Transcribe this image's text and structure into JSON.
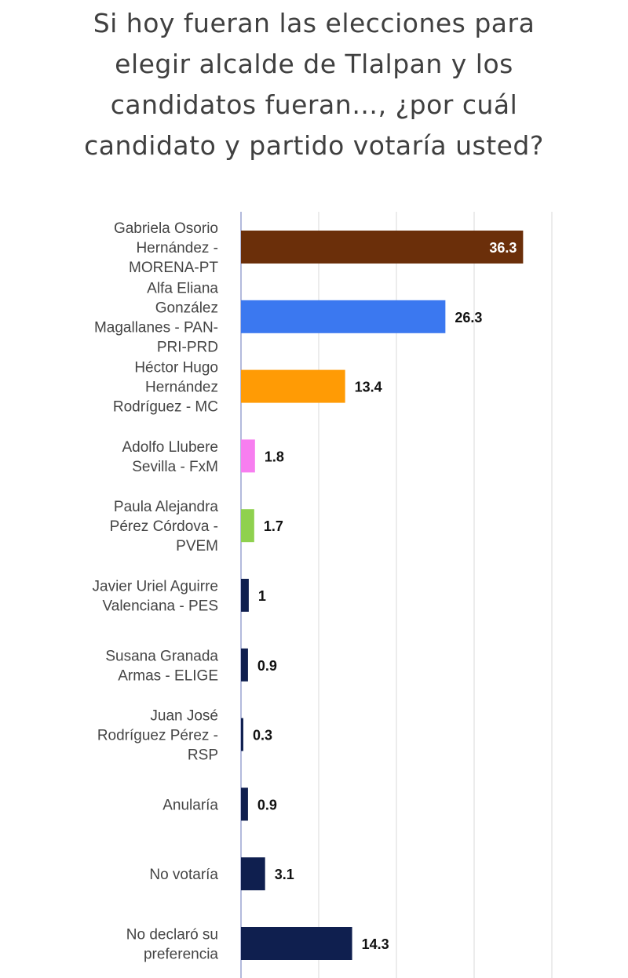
{
  "title_lines": [
    "Si hoy fueran las elecciones para",
    "elegir alcalde de Tlalpan y los",
    "candidatos fueran…, ¿por cuál",
    "candidato y partido votaría usted?"
  ],
  "chart_data": {
    "type": "bar",
    "orientation": "horizontal",
    "title": "Si hoy fueran las elecciones para elegir alcalde de Tlalpan y los candidatos fueran…, ¿por cuál candidato y partido votaría usted?",
    "categories": [
      "Gabriela Osorio Hernández - MORENA-PT",
      "Alfa Eliana González Magallanes - PAN-PRI-PRD",
      "Héctor Hugo Hernández Rodríguez - MC",
      "Adolfo Llubere Sevilla - FxM",
      "Paula Alejandra Pérez Córdova - PVEM",
      "Javier Uriel Aguirre Valenciana - PES",
      "Susana Granada Armas - ELIGE",
      "Juan José Rodríguez Pérez - RSP",
      "Anularía",
      "No votaría",
      "No declaró su preferencia"
    ],
    "category_lines": [
      [
        "Gabriela Osorio",
        "Hernández -",
        "MORENA-PT"
      ],
      [
        "Alfa Eliana",
        "González",
        "Magallanes - PAN-",
        "PRI-PRD"
      ],
      [
        "Héctor Hugo",
        "Hernández",
        "Rodríguez - MC"
      ],
      [
        "Adolfo Llubere",
        "Sevilla - FxM"
      ],
      [
        "Paula Alejandra",
        "Pérez Córdova -",
        "PVEM"
      ],
      [
        "Javier Uriel Aguirre",
        "Valenciana - PES"
      ],
      [
        "Susana Granada",
        "Armas - ELIGE"
      ],
      [
        "Juan José",
        "Rodríguez Pérez -",
        "RSP"
      ],
      [
        "Anularía"
      ],
      [
        "No votaría"
      ],
      [
        "No declaró su",
        "preferencia"
      ]
    ],
    "values": [
      36.3,
      26.3,
      13.4,
      1.8,
      1.7,
      1,
      0.9,
      0.3,
      0.9,
      3.1,
      14.3
    ],
    "value_labels": [
      "36.3",
      "26.3",
      "13.4",
      "1.8",
      "1.7",
      "1",
      "0.9",
      "0.3",
      "0.9",
      "3.1",
      "14.3"
    ],
    "colors": [
      "#6b2f0a",
      "#3b78f0",
      "#ff9b05",
      "#f77ef0",
      "#8fd14f",
      "#0f1f4f",
      "#0f1f4f",
      "#0f1f4f",
      "#0f1f4f",
      "#0f1f4f",
      "#0f1f4f"
    ],
    "xlim": [
      0,
      40
    ],
    "grid": true,
    "value_label_inside": [
      true,
      false,
      false,
      false,
      false,
      false,
      false,
      false,
      false,
      false,
      false
    ]
  }
}
